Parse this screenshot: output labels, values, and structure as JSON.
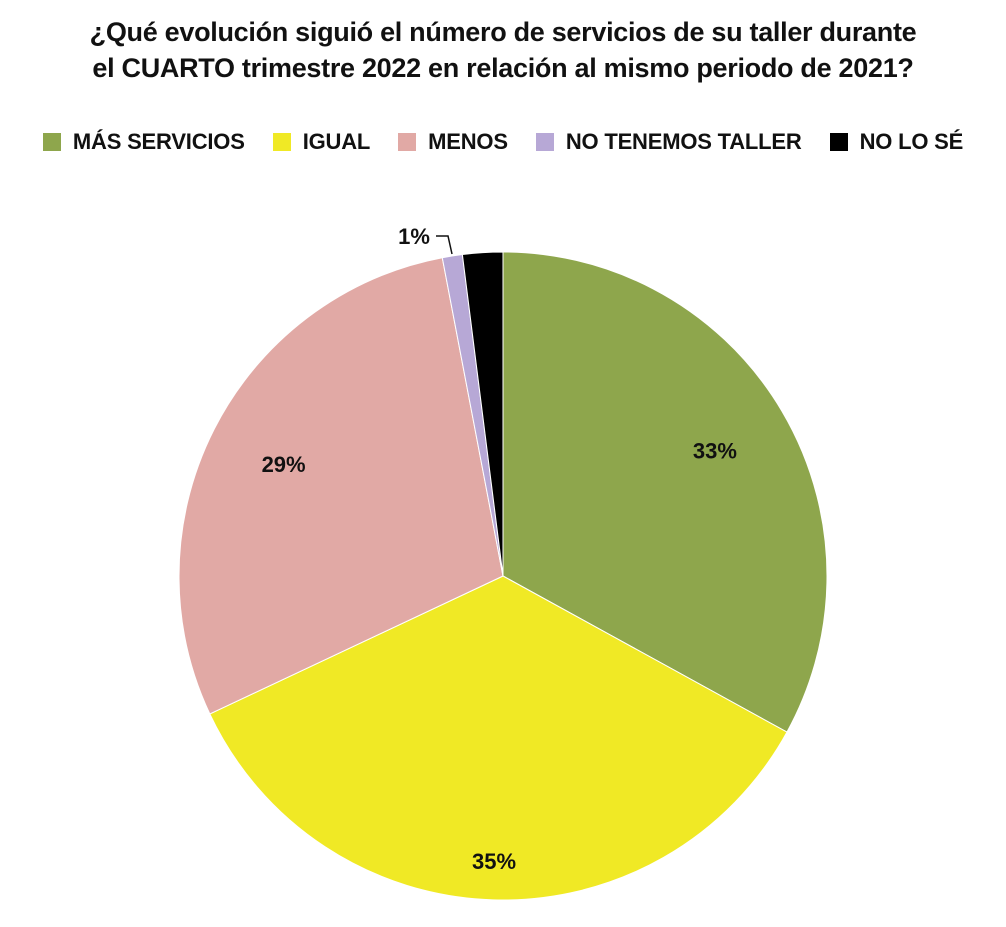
{
  "chart_data": {
    "type": "pie",
    "title": [
      "¿Qué evolución siguió  el número de servicios de su taller durante",
      "el CUARTO trimestre 2022 en relación al mismo periodo de 2021?"
    ],
    "legend_placement": "top",
    "slices": [
      {
        "label": "MÁS SERVICIOS",
        "value": 33,
        "display": "33%",
        "color": "#8ea64c"
      },
      {
        "label": "IGUAL",
        "value": 35,
        "display": "35%",
        "color": "#f0e925"
      },
      {
        "label": "MENOS",
        "value": 29,
        "display": "29%",
        "color": "#e1a9a5"
      },
      {
        "label": "NO TENEMOS TALLER",
        "value": 1,
        "display": "1%",
        "color": "#b7a8d6"
      },
      {
        "label": "NO LO SÉ",
        "value": 2,
        "display": "",
        "color": "#000000"
      }
    ]
  }
}
